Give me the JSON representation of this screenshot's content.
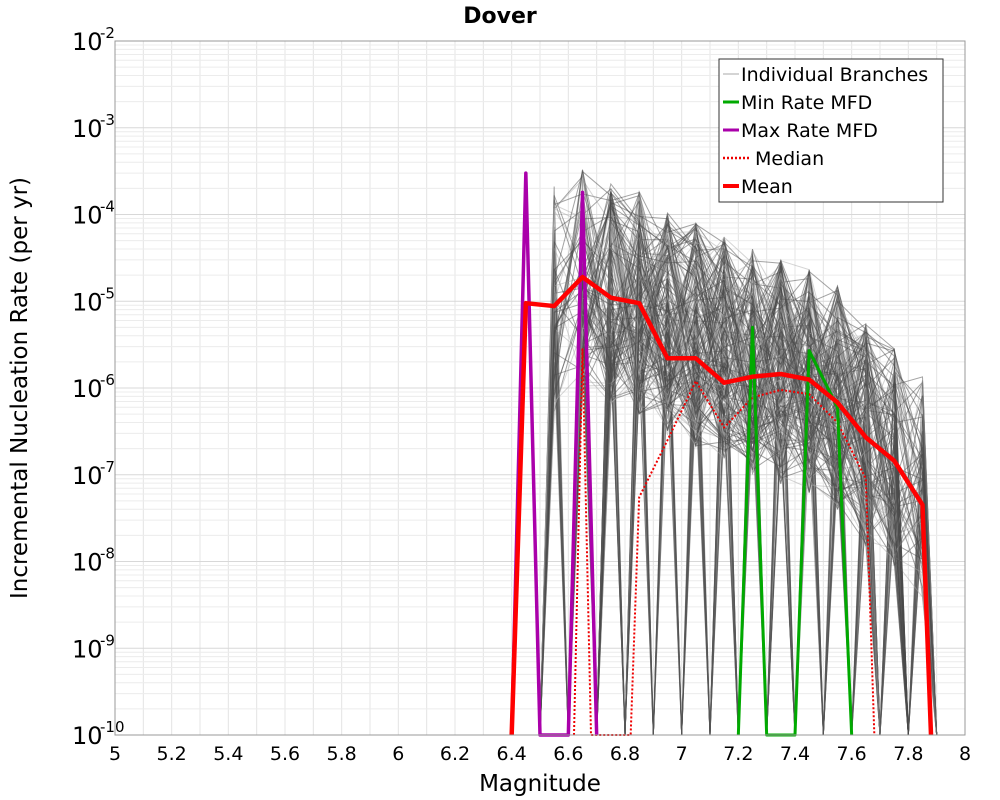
{
  "chart_data": {
    "type": "line",
    "title": "Dover",
    "xlabel": "Magnitude",
    "ylabel": "Incremental Nucleation Rate (per yr)",
    "xlim": [
      5,
      8
    ],
    "ylim": [
      1e-10,
      0.01
    ],
    "yscale": "log",
    "grid": true,
    "legend_position": "top-right",
    "x_ticks": [
      "5",
      "5.2",
      "5.4",
      "5.6",
      "5.8",
      "6",
      "6.2",
      "6.4",
      "6.6",
      "6.8",
      "7",
      "7.2",
      "7.4",
      "7.6",
      "7.8",
      "8"
    ],
    "y_ticks": [
      {
        "base": "10",
        "exp": "-2"
      },
      {
        "base": "10",
        "exp": "-3"
      },
      {
        "base": "10",
        "exp": "-4"
      },
      {
        "base": "10",
        "exp": "-5"
      },
      {
        "base": "10",
        "exp": "-6"
      },
      {
        "base": "10",
        "exp": "-7"
      },
      {
        "base": "10",
        "exp": "-8"
      },
      {
        "base": "10",
        "exp": "-9"
      },
      {
        "base": "10",
        "exp": "-10"
      }
    ],
    "series": [
      {
        "name": "Individual Branches",
        "color": "#555555",
        "style": "thin-band",
        "peaks": [
          {
            "x": 6.55,
            "ymax": 0.00021
          },
          {
            "x": 6.65,
            "ymax": 0.00033
          },
          {
            "x": 6.75,
            "ymax": 0.00024
          },
          {
            "x": 6.85,
            "ymax": 0.00019
          },
          {
            "x": 6.95,
            "ymax": 0.00011
          },
          {
            "x": 7.05,
            "ymax": 8e-05
          },
          {
            "x": 7.15,
            "ymax": 6e-05
          },
          {
            "x": 7.25,
            "ymax": 4e-05
          },
          {
            "x": 7.35,
            "ymax": 3e-05
          },
          {
            "x": 7.45,
            "ymax": 2.4e-05
          },
          {
            "x": 7.55,
            "ymax": 1.5e-05
          },
          {
            "x": 7.65,
            "ymax": 5.5e-06
          },
          {
            "x": 7.75,
            "ymax": 3.5e-06
          },
          {
            "x": 7.85,
            "ymax": 1.4e-06
          }
        ]
      },
      {
        "name": "Min Rate MFD",
        "color": "#00aa00",
        "x": [
          7.2,
          7.25,
          7.3,
          7.4,
          7.45,
          7.55,
          7.6
        ],
        "y": [
          1e-10,
          5e-06,
          1e-10,
          1e-10,
          2.7e-06,
          6e-07,
          1e-10
        ]
      },
      {
        "name": "Max Rate MFD",
        "color": "#aa00aa",
        "x": [
          6.4,
          6.45,
          6.5,
          6.6,
          6.65,
          6.7
        ],
        "y": [
          1e-10,
          0.0003,
          1e-10,
          1e-10,
          0.00018,
          1e-10
        ]
      },
      {
        "name": "Median",
        "color": "#ee0000",
        "style": "dotted",
        "x": [
          6.62,
          6.65,
          6.68,
          6.82,
          6.85,
          6.95,
          7.05,
          7.15,
          7.25,
          7.35,
          7.45,
          7.55,
          7.65,
          7.68
        ],
        "y": [
          1e-10,
          2.8e-06,
          1e-10,
          1e-10,
          5.5e-08,
          2.5e-07,
          1.2e-06,
          3.5e-07,
          7.8e-07,
          9.5e-07,
          8.5e-07,
          4e-07,
          9e-08,
          1e-10
        ]
      },
      {
        "name": "Mean",
        "color": "#ff0000",
        "x": [
          6.4,
          6.45,
          6.55,
          6.65,
          6.75,
          6.85,
          6.95,
          7.05,
          7.15,
          7.25,
          7.35,
          7.45,
          7.55,
          7.65,
          7.75,
          7.85,
          7.88
        ],
        "y": [
          1e-10,
          9.5e-06,
          8.8e-06,
          1.9e-05,
          1.1e-05,
          9.5e-06,
          2.2e-06,
          2.2e-06,
          1.15e-06,
          1.35e-06,
          1.45e-06,
          1.25e-06,
          6.8e-07,
          2.7e-07,
          1.45e-07,
          4.5e-08,
          1e-10
        ]
      }
    ]
  }
}
